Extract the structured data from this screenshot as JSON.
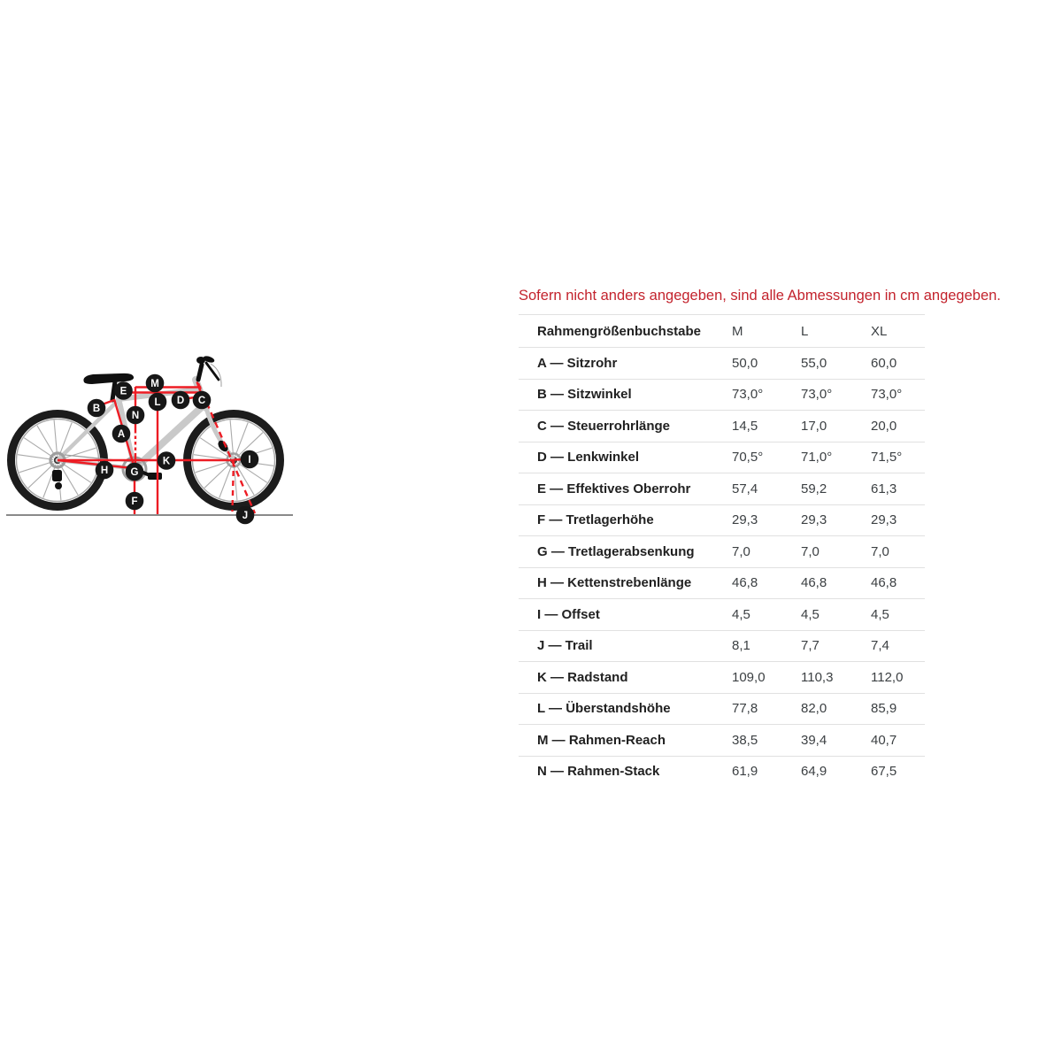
{
  "note": {
    "text": "Sofern nicht anders angegeben, sind alle Abmessungen in cm angegeben."
  },
  "colors": {
    "note_red": "#c3232d",
    "diagram_red": "#ed1c24",
    "frame_gray": "#c9c9c9",
    "label_bg": "#171717",
    "border_gray": "#e1e1e1",
    "text_dark": "#212121",
    "text_value": "#3c4043"
  },
  "table": {
    "header": {
      "label": "Rahmengrößenbuchstabe",
      "columns": [
        "M",
        "L",
        "XL"
      ]
    },
    "rows": [
      {
        "label": "A — Sitzrohr",
        "values": [
          "50,0",
          "55,0",
          "60,0"
        ]
      },
      {
        "label": "B — Sitzwinkel",
        "values": [
          "73,0°",
          "73,0°",
          "73,0°"
        ]
      },
      {
        "label": "C — Steuerrohrlänge",
        "values": [
          "14,5",
          "17,0",
          "20,0"
        ]
      },
      {
        "label": "D — Lenkwinkel",
        "values": [
          "70,5°",
          "71,0°",
          "71,5°"
        ]
      },
      {
        "label": "E — Effektives Oberrohr",
        "values": [
          "57,4",
          "59,2",
          "61,3"
        ]
      },
      {
        "label": "F — Tretlagerhöhe",
        "values": [
          "29,3",
          "29,3",
          "29,3"
        ]
      },
      {
        "label": "G — Tretlagerabsenkung",
        "values": [
          "7,0",
          "7,0",
          "7,0"
        ]
      },
      {
        "label": "H — Kettenstrebenlänge",
        "values": [
          "46,8",
          "46,8",
          "46,8"
        ]
      },
      {
        "label": "I — Offset",
        "values": [
          "4,5",
          "4,5",
          "4,5"
        ]
      },
      {
        "label": "J — Trail",
        "values": [
          "8,1",
          "7,7",
          "7,4"
        ]
      },
      {
        "label": "K — Radstand",
        "values": [
          "109,0",
          "110,3",
          "112,0"
        ]
      },
      {
        "label": "L — Überstandshöhe",
        "values": [
          "77,8",
          "82,0",
          "85,9"
        ]
      },
      {
        "label": "M — Rahmen-Reach",
        "values": [
          "38,5",
          "39,4",
          "40,7"
        ]
      },
      {
        "label": "N — Rahmen-Stack",
        "values": [
          "61,9",
          "64,9",
          "67,5"
        ]
      }
    ]
  },
  "diagram": {
    "labels": [
      "A",
      "B",
      "C",
      "D",
      "E",
      "F",
      "G",
      "H",
      "I",
      "J",
      "K",
      "L",
      "M",
      "N"
    ]
  }
}
